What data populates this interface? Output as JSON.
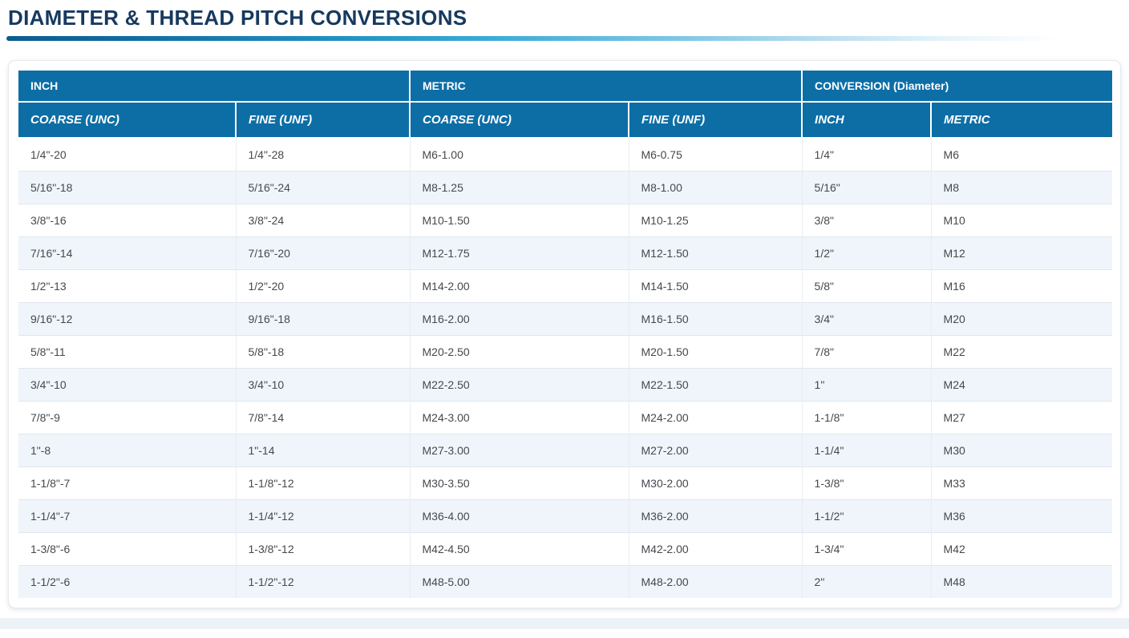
{
  "page": {
    "title": "DIAMETER & THREAD PITCH CONVERSIONS"
  },
  "colors": {
    "header_bg": "#0d6ea6",
    "title": "#16395f",
    "row_alt": "#eff5fa",
    "accent_bar_start": "#0a5c90",
    "accent_bar_mid": "#3aabd8"
  },
  "table": {
    "groups": [
      {
        "label": "INCH",
        "span": 2
      },
      {
        "label": "METRIC",
        "span": 2
      },
      {
        "label": "CONVERSION (Diameter)",
        "span": 2
      }
    ],
    "columns": [
      "COARSE (UNC)",
      "FINE (UNF)",
      "COARSE (UNC)",
      "FINE (UNF)",
      "INCH",
      "METRIC"
    ],
    "rows": [
      [
        "1/4\"-20",
        "1/4\"-28",
        "M6-1.00",
        "M6-0.75",
        "1/4\"",
        "M6"
      ],
      [
        "5/16\"-18",
        "5/16\"-24",
        "M8-1.25",
        "M8-1.00",
        "5/16\"",
        "M8"
      ],
      [
        "3/8\"-16",
        "3/8\"-24",
        "M10-1.50",
        "M10-1.25",
        "3/8\"",
        "M10"
      ],
      [
        "7/16\"-14",
        "7/16\"-20",
        "M12-1.75",
        "M12-1.50",
        "1/2\"",
        "M12"
      ],
      [
        "1/2\"-13",
        "1/2\"-20",
        "M14-2.00",
        "M14-1.50",
        "5/8\"",
        "M16"
      ],
      [
        "9/16\"-12",
        "9/16\"-18",
        "M16-2.00",
        "M16-1.50",
        "3/4\"",
        "M20"
      ],
      [
        "5/8\"-11",
        "5/8\"-18",
        "M20-2.50",
        "M20-1.50",
        "7/8\"",
        "M22"
      ],
      [
        "3/4\"-10",
        "3/4\"-10",
        "M22-2.50",
        "M22-1.50",
        "1\"",
        "M24"
      ],
      [
        "7/8\"-9",
        "7/8\"-14",
        "M24-3.00",
        "M24-2.00",
        "1-1/8\"",
        "M27"
      ],
      [
        "1\"-8",
        "1\"-14",
        "M27-3.00",
        "M27-2.00",
        "1-1/4\"",
        "M30"
      ],
      [
        "1-1/8\"-7",
        "1-1/8\"-12",
        "M30-3.50",
        "M30-2.00",
        "1-3/8\"",
        "M33"
      ],
      [
        "1-1/4\"-7",
        "1-1/4\"-12",
        "M36-4.00",
        "M36-2.00",
        "1-1/2\"",
        "M36"
      ],
      [
        "1-3/8\"-6",
        "1-3/8\"-12",
        "M42-4.50",
        "M42-2.00",
        "1-3/4\"",
        "M42"
      ],
      [
        "1-1/2\"-6",
        "1-1/2\"-12",
        "M48-5.00",
        "M48-2.00",
        "2\"",
        "M48"
      ]
    ]
  }
}
